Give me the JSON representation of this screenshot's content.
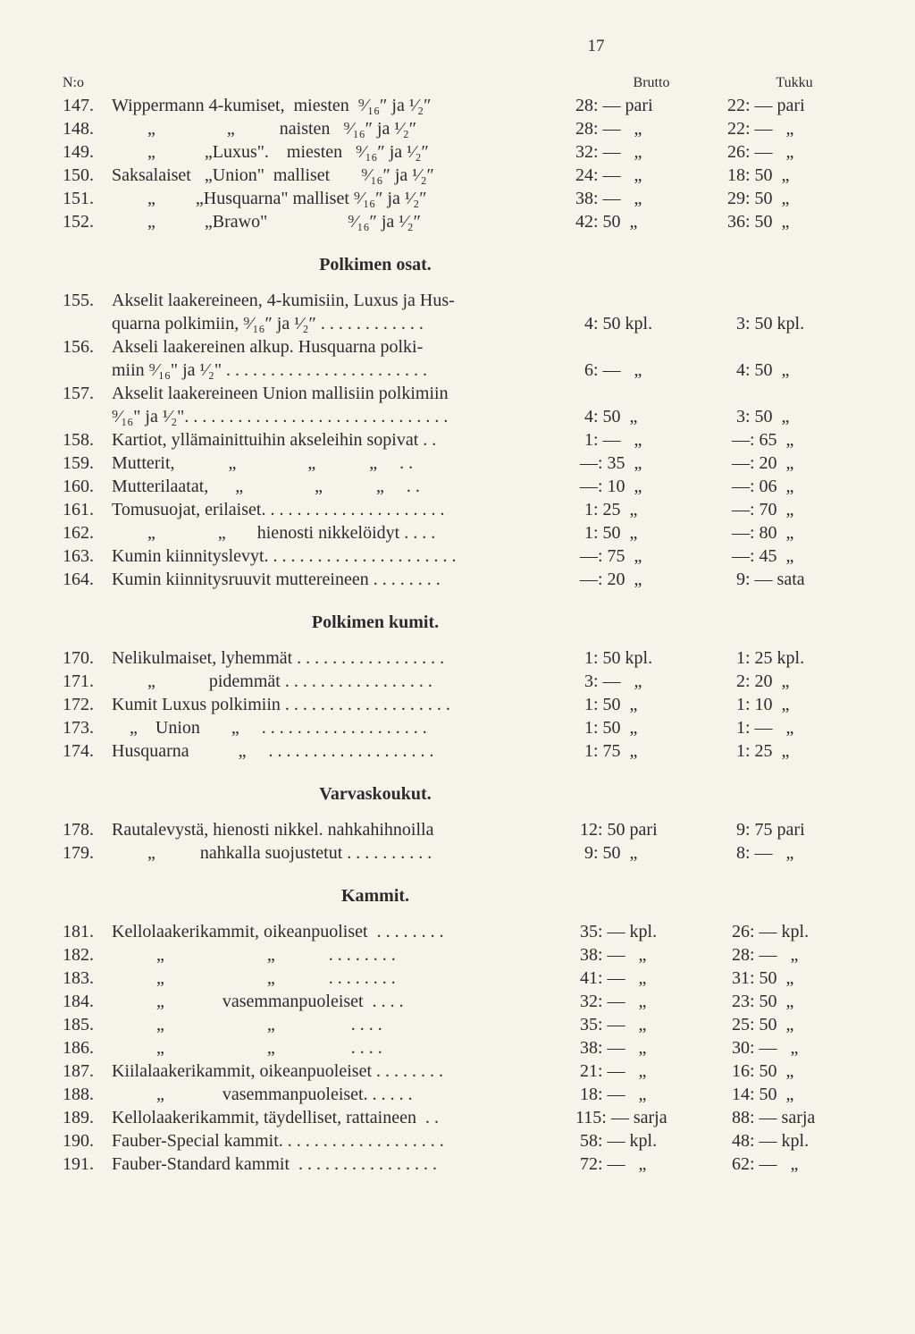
{
  "page_number": "17",
  "header": {
    "no": "N:o",
    "brutto": "Brutto",
    "tukku": "Tukku"
  },
  "section1": {
    "rows": [
      {
        "no": "147.",
        "desc": "Wippermann 4-kumiset,  miesten  ⁹⁄₁₆″ ja ¹⁄₂″",
        "brutto": "28: — pari",
        "tukku": "22: — pari"
      },
      {
        "no": "148.",
        "desc": "        „                „          naisten   ⁹⁄₁₆″ ja ¹⁄₂″",
        "brutto": "28: —   „",
        "tukku": "22: —   „"
      },
      {
        "no": "149.",
        "desc": "        „           „Luxus\".    miesten   ⁹⁄₁₆″ ja ¹⁄₂″",
        "brutto": "32: —   „",
        "tukku": "26: —   „"
      },
      {
        "no": "150.",
        "desc": "Saksalaiset   „Union\"  malliset       ⁹⁄₁₆″ ja ¹⁄₂″",
        "brutto": "24: —   „",
        "tukku": "18: 50  „"
      },
      {
        "no": "151.",
        "desc": "        „         „Husquarna\" malliset ⁹⁄₁₆″ ja ¹⁄₂″",
        "brutto": "38: —   „",
        "tukku": "29: 50  „"
      },
      {
        "no": "152.",
        "desc": "        „           „Brawo\"                  ⁹⁄₁₆″ ja ¹⁄₂″",
        "brutto": "42: 50  „",
        "tukku": "36: 50  „"
      }
    ]
  },
  "section2": {
    "title": "Polkimen osat.",
    "rows": [
      {
        "no": "155.",
        "desc": "Akselit laakereineen, 4-kumisiin, Luxus ja Hus-",
        "brutto": "",
        "tukku": ""
      },
      {
        "no": "",
        "desc": "quarna polkimiin, ⁹⁄₁₆″ ja ¹⁄₂″ . . . . . . . . . . . .",
        "brutto": "  4: 50 kpl.",
        "tukku": "  3: 50 kpl."
      },
      {
        "no": "156.",
        "desc": "Akseli laakereinen alkup. Husquarna polki-",
        "brutto": "",
        "tukku": ""
      },
      {
        "no": "",
        "desc": "miin ⁹⁄₁₆\" ja ¹⁄₂\" . . . . . . . . . . . . . . . . . . . . . . .",
        "brutto": "  6: —   „",
        "tukku": "  4: 50  „"
      },
      {
        "no": "157.",
        "desc": "Akselit laakereineen Union mallisiin polkimiin",
        "brutto": "",
        "tukku": ""
      },
      {
        "no": "",
        "desc": "⁹⁄₁₆\" ja ¹⁄₂\". . . . . . . . . . . . . . . . . . . . . . . . . . . . . .",
        "brutto": "  4: 50  „",
        "tukku": "  3: 50  „"
      },
      {
        "no": "158.",
        "desc": "Kartiot, yllämainittuihin akseleihin sopivat . .",
        "brutto": "  1: —   „",
        "tukku": " —: 65  „"
      },
      {
        "no": "159.",
        "desc": "Mutterit,            „                „            „     . .",
        "brutto": " —: 35  „",
        "tukku": " —: 20  „"
      },
      {
        "no": "160.",
        "desc": "Mutterilaatat,      „                „            „     . .",
        "brutto": " —: 10  „",
        "tukku": " —: 06  „"
      },
      {
        "no": "161.",
        "desc": "Tomusuojat, erilaiset. . . . . . . . . . . . . . . . . . . . .",
        "brutto": "  1: 25  „",
        "tukku": " —: 70  „"
      },
      {
        "no": "162.",
        "desc": "        „              „       hienosti nikkelöidyt . . . .",
        "brutto": "  1: 50  „",
        "tukku": " —: 80  „"
      },
      {
        "no": "163.",
        "desc": "Kumin kiinnityslevyt. . . . . . . . . . . . . . . . . . . . . .",
        "brutto": " —: 75  „",
        "tukku": " —: 45  „"
      },
      {
        "no": "164.",
        "desc": "Kumin kiinnitysruuvit muttereineen . . . . . . . .",
        "brutto": " —: 20  „",
        "tukku": "  9: — sata"
      }
    ]
  },
  "section3": {
    "title": "Polkimen kumit.",
    "rows": [
      {
        "no": "170.",
        "desc": "Nelikulmaiset, lyhemmät . . . . . . . . . . . . . . . . .",
        "brutto": "  1: 50 kpl.",
        "tukku": "  1: 25 kpl."
      },
      {
        "no": "171.",
        "desc": "        „            pidemmät . . . . . . . . . . . . . . . . .",
        "brutto": "  3: —   „",
        "tukku": "  2: 20  „"
      },
      {
        "no": "172.",
        "desc": "Kumit Luxus polkimiin . . . . . . . . . . . . . . . . . . .",
        "brutto": "  1: 50  „",
        "tukku": "  1: 10  „"
      },
      {
        "no": "173.",
        "desc": "    „    Union       „     . . . . . . . . . . . . . . . . . . .",
        "brutto": "  1: 50  „",
        "tukku": "  1: —   „"
      },
      {
        "no": "174.",
        "desc": "Husquarna           „     . . . . . . . . . . . . . . . . . . .",
        "brutto": "  1: 75  „",
        "tukku": "  1: 25  „"
      }
    ]
  },
  "section4": {
    "title": "Varvaskoukut.",
    "rows": [
      {
        "no": "178.",
        "desc": "Rautalevystä, hienosti nikkel. nahkahihnoilla",
        "brutto": " 12: 50 pari",
        "tukku": "  9: 75 pari"
      },
      {
        "no": "179.",
        "desc": "        „          nahkalla suojustetut . . . . . . . . . .",
        "brutto": "  9: 50  „",
        "tukku": "  8: —   „"
      }
    ]
  },
  "section5": {
    "title": "Kammit.",
    "rows": [
      {
        "no": "181.",
        "desc": "Kellolaakerikammit, oikeanpuoliset  . . . . . . . .",
        "brutto": " 35: — kpl.",
        "tukku": " 26: — kpl."
      },
      {
        "no": "182.",
        "desc": "          „                       „            . . . . . . . .",
        "brutto": " 38: —   „",
        "tukku": " 28: —   „"
      },
      {
        "no": "183.",
        "desc": "          „                       „            . . . . . . . .",
        "brutto": " 41: —   „",
        "tukku": " 31: 50  „"
      },
      {
        "no": "184.",
        "desc": "          „             vasemmanpuoleiset  . . . .",
        "brutto": " 32: —   „",
        "tukku": " 23: 50  „"
      },
      {
        "no": "185.",
        "desc": "          „                       „                 . . . .",
        "brutto": " 35: —   „",
        "tukku": " 25: 50  „"
      },
      {
        "no": "186.",
        "desc": "          „                       „                 . . . .",
        "brutto": " 38: —   „",
        "tukku": " 30: —   „"
      },
      {
        "no": "187.",
        "desc": "Kiilalaakerikammit, oikeanpuoleiset . . . . . . . .",
        "brutto": " 21: —   „",
        "tukku": " 16: 50  „"
      },
      {
        "no": "188.",
        "desc": "          „             vasemmanpuoleiset. . . . . .",
        "brutto": " 18: —   „",
        "tukku": " 14: 50  „"
      },
      {
        "no": "189.",
        "desc": "Kellolaakerikammit, täydelliset, rattaineen  . .",
        "brutto": "115: — sarja",
        "tukku": " 88: — sarja"
      },
      {
        "no": "190.",
        "desc": "Fauber-Special kammit. . . . . . . . . . . . . . . . . . .",
        "brutto": " 58: — kpl.",
        "tukku": " 48: — kpl."
      },
      {
        "no": "191.",
        "desc": "Fauber-Standard kammit  . . . . . . . . . . . . . . . .",
        "brutto": " 72: —   „",
        "tukku": " 62: —   „"
      }
    ]
  }
}
